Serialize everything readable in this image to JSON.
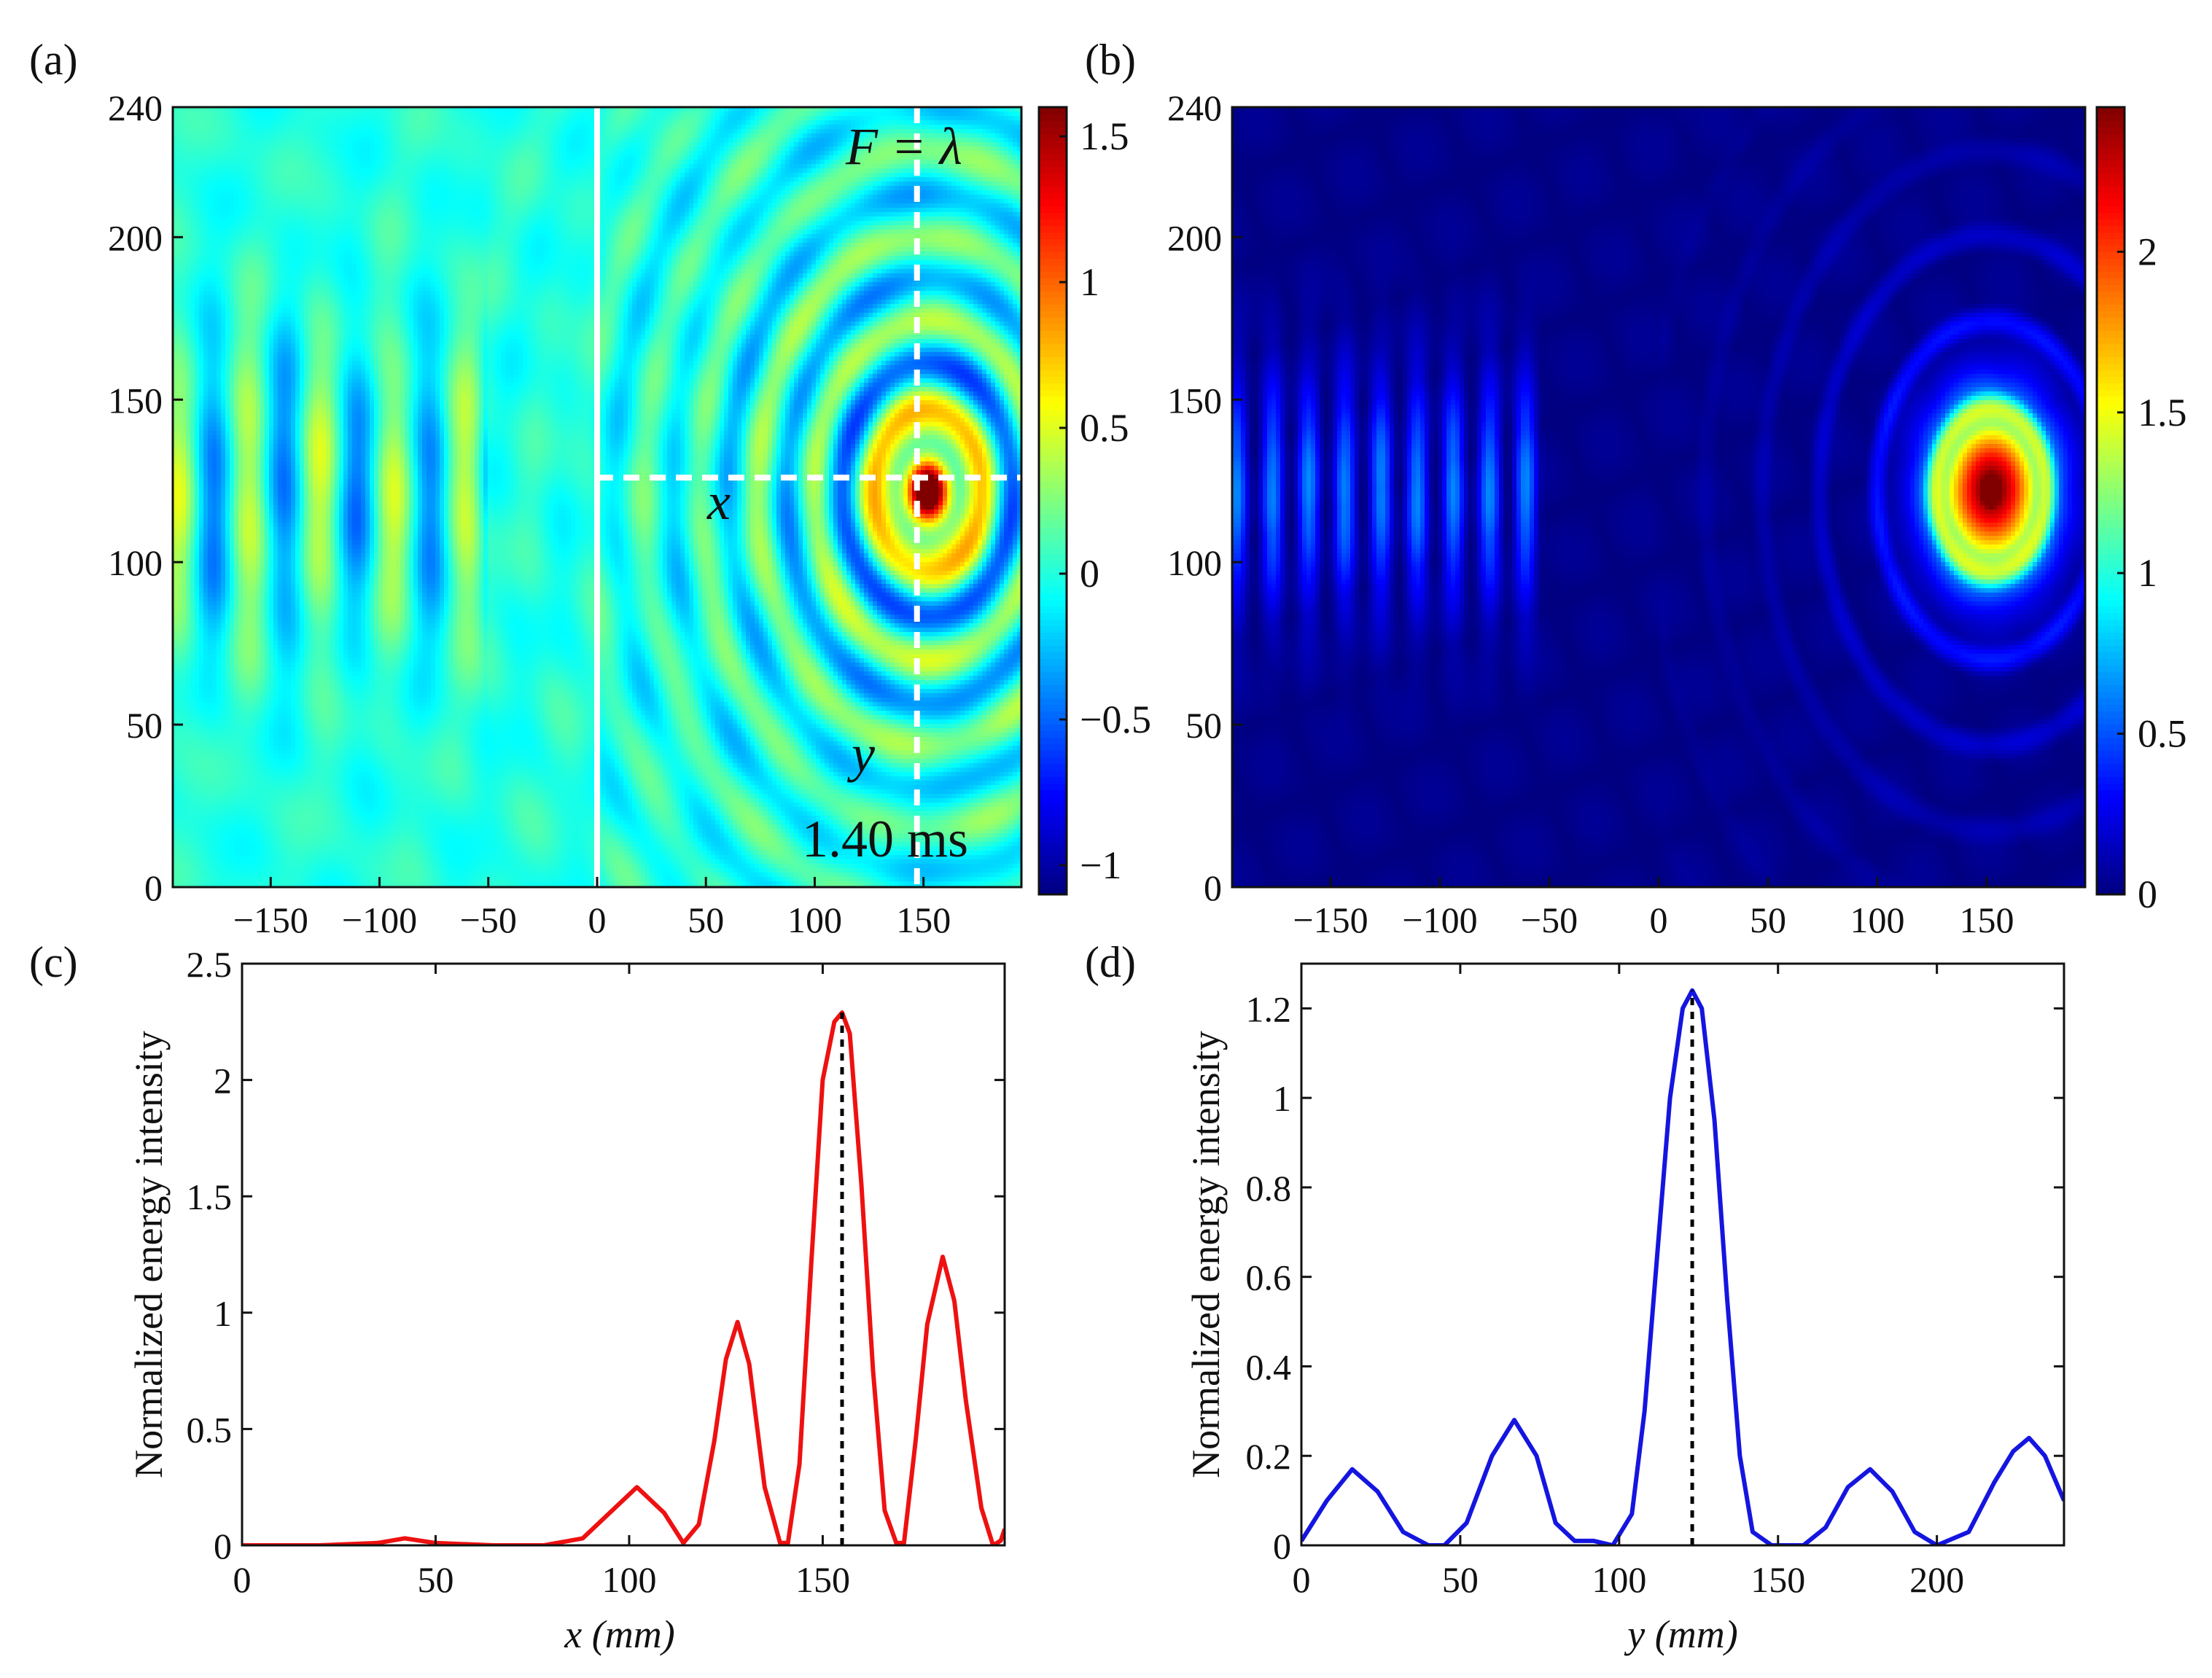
{
  "panels": {
    "a": {
      "label": "(a)",
      "annotation_F": "F = λ",
      "annotation_x": "x",
      "annotation_y": "y",
      "annotation_time": "1.40 ms"
    },
    "b": {
      "label": "(b)"
    },
    "c": {
      "label": "(c)"
    },
    "d": {
      "label": "(d)"
    }
  },
  "colors": {
    "line_c": "#ee1111",
    "line_d": "#1515e0",
    "marker": "#000000",
    "guides": "#ffffff",
    "colormap": "jet"
  },
  "chart_data": [
    {
      "id": "a",
      "type": "heatmap",
      "title": "",
      "xlabel": "",
      "ylabel": "",
      "xlim": [
        -195,
        195
      ],
      "ylim": [
        0,
        240
      ],
      "x_ticks": [
        -150,
        -100,
        -50,
        0,
        50,
        100,
        150
      ],
      "x_tick_labels": [
        "−150",
        "−100",
        "−50",
        "0",
        "50",
        "100",
        "150"
      ],
      "y_ticks": [
        0,
        50,
        100,
        150,
        200,
        240
      ],
      "y_tick_labels": [
        "0",
        "50",
        "100",
        "150",
        "200",
        "240"
      ],
      "colorbar": {
        "range": [
          -1.1,
          1.6
        ],
        "ticks": [
          -1,
          -0.5,
          0,
          0.5,
          1,
          1.5
        ],
        "tick_labels": [
          "−1",
          "−0.5",
          "0",
          "0.5",
          "1",
          "1.5"
        ]
      },
      "focus": {
        "x": 152,
        "y": 122
      },
      "solid_vertical_line_x": 0,
      "dashed_vertical_line_x": 147,
      "dashed_horizontal_line_y": 126
    },
    {
      "id": "b",
      "type": "heatmap",
      "title": "",
      "xlabel": "",
      "ylabel": "",
      "xlim": [
        -195,
        195
      ],
      "ylim": [
        0,
        240
      ],
      "x_ticks": [
        -150,
        -100,
        -50,
        0,
        50,
        100,
        150
      ],
      "x_tick_labels": [
        "−150",
        "−100",
        "−50",
        "0",
        "50",
        "100",
        "150"
      ],
      "y_ticks": [
        0,
        50,
        100,
        150,
        200,
        240
      ],
      "y_tick_labels": [
        "0",
        "50",
        "100",
        "150",
        "200",
        "240"
      ],
      "colorbar": {
        "range": [
          0,
          2.45
        ],
        "ticks": [
          0,
          0.5,
          1,
          1.5,
          2
        ],
        "tick_labels": [
          "0",
          "0.5",
          "1",
          "1.5",
          "2"
        ]
      },
      "focus": {
        "x": 152,
        "y": 122
      }
    },
    {
      "id": "c",
      "type": "line",
      "title": "",
      "xlabel": "x (mm)",
      "ylabel": "Normalized energy intensity",
      "xlim": [
        0,
        197
      ],
      "ylim": [
        0,
        2.5
      ],
      "x_ticks": [
        0,
        50,
        100,
        150
      ],
      "y_ticks": [
        0,
        0.5,
        1,
        1.5,
        2,
        2.5
      ],
      "y_tick_labels": [
        "0",
        "0.5",
        "1",
        "1.5",
        "2",
        "2.5"
      ],
      "marker_x": 155,
      "series": [
        {
          "x": [
            0,
            20,
            35,
            42,
            50,
            65,
            78,
            88,
            95,
            102,
            109,
            114,
            118,
            122,
            125,
            128,
            131,
            135,
            139,
            141,
            144,
            147,
            150,
            153,
            155,
            157,
            160,
            163,
            166,
            169,
            171,
            174,
            177,
            181,
            184,
            187,
            191,
            194,
            196,
            197
          ],
          "y": [
            0,
            0,
            0.01,
            0.03,
            0.01,
            0,
            0,
            0.03,
            0.14,
            0.25,
            0.14,
            0.01,
            0.09,
            0.45,
            0.8,
            0.96,
            0.78,
            0.25,
            0.01,
            0.01,
            0.35,
            1.2,
            2.0,
            2.25,
            2.29,
            2.2,
            1.55,
            0.75,
            0.15,
            0.01,
            0.01,
            0.45,
            0.95,
            1.24,
            1.05,
            0.62,
            0.16,
            0.0,
            0.02,
            0.07
          ]
        }
      ]
    },
    {
      "id": "d",
      "type": "line",
      "title": "",
      "xlabel": "y (mm)",
      "ylabel": "Normalized energy intensity",
      "xlim": [
        0,
        240
      ],
      "ylim": [
        0,
        1.3
      ],
      "x_ticks": [
        0,
        50,
        100,
        150,
        200
      ],
      "y_ticks": [
        0,
        0.2,
        0.4,
        0.6,
        0.8,
        1,
        1.2
      ],
      "y_tick_labels": [
        "0",
        "0.2",
        "0.4",
        "0.6",
        "0.8",
        "1",
        "1.2"
      ],
      "marker_x": 123,
      "series": [
        {
          "x": [
            0,
            8,
            16,
            24,
            32,
            40,
            45,
            52,
            60,
            67,
            74,
            80,
            86,
            92,
            98,
            104,
            108,
            112,
            116,
            120,
            123,
            126,
            130,
            134,
            138,
            142,
            148,
            158,
            165,
            172,
            179,
            186,
            193,
            200,
            210,
            218,
            224,
            229,
            234,
            240
          ],
          "y": [
            0.01,
            0.1,
            0.17,
            0.12,
            0.03,
            0,
            0,
            0.05,
            0.2,
            0.28,
            0.2,
            0.05,
            0.01,
            0.01,
            0.0,
            0.07,
            0.3,
            0.65,
            1.0,
            1.2,
            1.24,
            1.2,
            0.95,
            0.55,
            0.2,
            0.03,
            0,
            0,
            0.04,
            0.13,
            0.17,
            0.12,
            0.03,
            0,
            0.03,
            0.14,
            0.21,
            0.24,
            0.2,
            0.1
          ]
        }
      ]
    }
  ]
}
